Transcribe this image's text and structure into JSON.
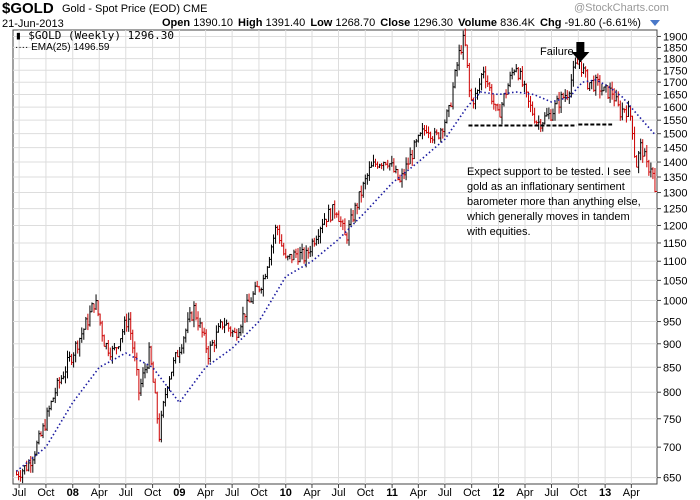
{
  "header": {
    "symbol": "$GOLD",
    "name": "Gold - Spot Price (EOD)",
    "exchange": "CME",
    "date": "21-Jun-2013",
    "open_label": "Open",
    "open": "1390.10",
    "high_label": "High",
    "high": "1391.40",
    "low_label": "Low",
    "low": "1268.70",
    "close_label": "Close",
    "close": "1296.30",
    "volume_label": "Volume",
    "volume": "836.4K",
    "chg_label": "Chg",
    "chg": "-91.80 (-6.61%)",
    "watermark": "@StockCharts.com"
  },
  "legend": {
    "price": "$GOLD (Weekly) 1296.30",
    "ema": "EMA(25) 1496.59"
  },
  "annotations": {
    "failure": "Failure",
    "support_text": "Expect support to be tested. I see gold as an inflationary sentiment barometer more than anything else, which generally moves in tandem with equities."
  },
  "colors": {
    "up_bar": "#000000",
    "down_bar": "#cc0000",
    "ema": "#1a1aa0",
    "grid": "#dddddd"
  },
  "chart_data": {
    "type": "line",
    "title": "$GOLD (Weekly)",
    "y_scale": "log",
    "ylim": [
      640,
      1930
    ],
    "y_ticks": [
      650,
      700,
      750,
      800,
      850,
      900,
      950,
      1000,
      1050,
      1100,
      1150,
      1200,
      1250,
      1300,
      1350,
      1400,
      1450,
      1500,
      1550,
      1600,
      1650,
      1700,
      1750,
      1800,
      1850,
      1900
    ],
    "x_ticks": [
      "Jul",
      "Oct",
      "08",
      "Apr",
      "Jul",
      "Oct",
      "09",
      "Apr",
      "Jul",
      "Oct",
      "10",
      "Apr",
      "Jul",
      "Oct",
      "11",
      "Apr",
      "Jul",
      "Oct",
      "12",
      "Apr",
      "Jul",
      "Oct",
      "13",
      "Apr"
    ],
    "x_tick_dates": [
      "2007-07-01",
      "2007-10-01",
      "2008-01-01",
      "2008-04-01",
      "2008-07-01",
      "2008-10-01",
      "2009-01-01",
      "2009-04-01",
      "2009-07-01",
      "2009-10-01",
      "2010-01-01",
      "2010-04-01",
      "2010-07-01",
      "2010-10-01",
      "2011-01-01",
      "2011-04-01",
      "2011-07-01",
      "2011-10-01",
      "2012-01-01",
      "2012-04-01",
      "2012-07-01",
      "2012-10-01",
      "2013-01-01",
      "2013-04-01"
    ],
    "series": [
      {
        "name": "$GOLD (Weekly)",
        "style": "hlc-bars",
        "x": [
          "2007-06-22",
          "2007-08-01",
          "2007-09-15",
          "2007-11-01",
          "2008-01-01",
          "2008-02-20",
          "2008-03-17",
          "2008-04-20",
          "2008-05-20",
          "2008-07-10",
          "2008-08-15",
          "2008-09-20",
          "2008-10-24",
          "2008-11-20",
          "2008-12-20",
          "2009-02-20",
          "2009-04-10",
          "2009-06-01",
          "2009-07-10",
          "2009-09-01",
          "2009-10-15",
          "2009-12-01",
          "2009-12-31",
          "2010-02-05",
          "2010-03-10",
          "2010-05-10",
          "2010-06-25",
          "2010-07-25",
          "2010-08-20",
          "2010-10-15",
          "2010-11-10",
          "2010-12-15",
          "2011-01-28",
          "2011-03-10",
          "2011-05-01",
          "2011-05-30",
          "2011-07-15",
          "2011-08-22",
          "2011-09-06",
          "2011-09-26",
          "2011-10-20",
          "2011-11-10",
          "2011-12-29",
          "2012-02-29",
          "2012-04-10",
          "2012-05-15",
          "2012-06-25",
          "2012-07-25",
          "2012-08-25",
          "2012-09-20",
          "2012-10-05",
          "2012-11-01",
          "2012-12-05",
          "2012-12-28",
          "2013-01-25",
          "2013-02-20",
          "2013-03-10",
          "2013-04-02",
          "2013-04-16",
          "2013-05-05",
          "2013-05-25",
          "2013-06-10",
          "2013-06-21"
        ],
        "y": [
          655,
          670,
          720,
          800,
          880,
          950,
          1000,
          900,
          880,
          960,
          800,
          880,
          720,
          820,
          870,
          980,
          880,
          950,
          920,
          1000,
          1050,
          1200,
          1100,
          1120,
          1110,
          1220,
          1250,
          1160,
          1230,
          1370,
          1400,
          1410,
          1330,
          1430,
          1530,
          1480,
          1580,
          1840,
          1890,
          1620,
          1650,
          1760,
          1560,
          1780,
          1620,
          1540,
          1570,
          1620,
          1660,
          1760,
          1790,
          1700,
          1690,
          1660,
          1660,
          1580,
          1600,
          1560,
          1380,
          1460,
          1380,
          1390,
          1296
        ]
      },
      {
        "name": "EMA(25)",
        "style": "dotted-line",
        "x": [
          "2007-06-22",
          "2007-10-01",
          "2008-01-01",
          "2008-04-01",
          "2008-07-01",
          "2008-10-01",
          "2009-01-01",
          "2009-04-01",
          "2009-07-01",
          "2009-10-01",
          "2010-01-01",
          "2010-04-01",
          "2010-07-01",
          "2010-10-01",
          "2011-01-01",
          "2011-04-01",
          "2011-07-01",
          "2011-09-15",
          "2011-11-01",
          "2012-01-01",
          "2012-03-01",
          "2012-05-01",
          "2012-07-01",
          "2012-09-01",
          "2012-10-15",
          "2012-12-01",
          "2013-01-15",
          "2013-03-01",
          "2013-04-15",
          "2013-06-21"
        ],
        "y": [
          660,
          700,
          780,
          850,
          880,
          850,
          780,
          850,
          890,
          950,
          1060,
          1100,
          1160,
          1240,
          1330,
          1400,
          1480,
          1600,
          1660,
          1650,
          1660,
          1650,
          1620,
          1640,
          1700,
          1710,
          1680,
          1640,
          1580,
          1496.59
        ]
      }
    ],
    "annotations": [
      "Failure",
      "Expect support to be tested. I see gold as an inflationary sentiment barometer more than anything else, which generally moves in tandem with equities."
    ],
    "support_line": 1530
  }
}
